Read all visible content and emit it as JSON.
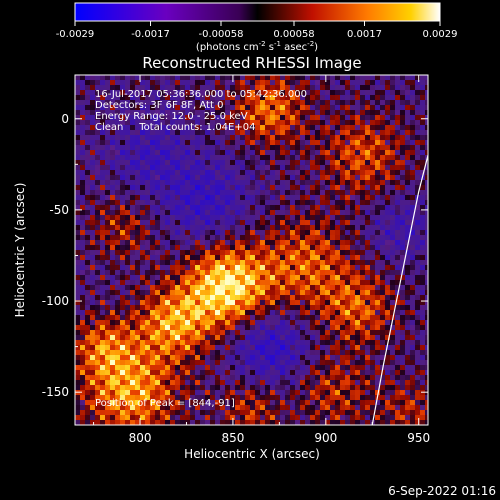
{
  "chart_data": {
    "type": "heatmap",
    "title": "Reconstructed RHESSI Image",
    "xlabel": "Heliocentric X (arcsec)",
    "ylabel": "Heliocentric Y (arcsec)",
    "xlim": [
      765,
      955
    ],
    "ylim": [
      -168,
      24
    ],
    "xticks": [
      800,
      850,
      900,
      950
    ],
    "yticks": [
      0,
      -50,
      -100,
      -150
    ],
    "colorbar": {
      "unit_prefix": "(photons cm",
      "unit_exp1": "-2",
      "unit_mid": " s",
      "unit_exp2": "-1",
      "unit_mid2": " asec",
      "unit_exp3": "-2",
      "unit_suffix": ")",
      "range": [
        -0.0029,
        0.0029
      ],
      "ticks": [
        "-0.0029",
        "-0.0017",
        "-0.00058",
        "0.00058",
        "0.0017",
        "0.0029"
      ]
    },
    "info_lines": [
      "16-Jul-2017 05:36:36.000 to 05:42:36.000",
      "Detectors: 3F 6F 8F, Att 0",
      "Energy Range: 12.0 - 25.0 keV",
      "Clean     Total counts: 1.04E+04"
    ],
    "peak_label": "Position of Peak = [844,-91]",
    "peak_position": [
      844,
      -91
    ],
    "limb_curve": [
      [
        966,
        24
      ],
      [
        950,
        -40
      ],
      [
        940,
        -90
      ],
      [
        931,
        -135
      ],
      [
        925,
        -168
      ]
    ],
    "blobs": [
      {
        "x": 847,
        "y": -92,
        "amp": 1.0,
        "s": 16
      },
      {
        "x": 818,
        "y": -112,
        "amp": 0.7,
        "s": 14
      },
      {
        "x": 795,
        "y": -150,
        "amp": 0.75,
        "s": 18
      },
      {
        "x": 780,
        "y": -125,
        "amp": 0.5,
        "s": 12
      },
      {
        "x": 890,
        "y": -80,
        "amp": 0.55,
        "s": 18
      },
      {
        "x": 918,
        "y": -105,
        "amp": 0.5,
        "s": 14
      },
      {
        "x": 905,
        "y": -150,
        "amp": 0.4,
        "s": 14
      },
      {
        "x": 870,
        "y": 5,
        "amp": 0.6,
        "s": 14
      },
      {
        "x": 920,
        "y": -20,
        "amp": 0.5,
        "s": 16
      },
      {
        "x": 945,
        "y": -160,
        "amp": 0.35,
        "s": 12
      },
      {
        "x": 860,
        "y": -160,
        "amp": 0.4,
        "s": 12
      },
      {
        "x": 790,
        "y": -60,
        "amp": 0.35,
        "s": 12
      },
      {
        "x": 870,
        "y": -125,
        "amp": -0.55,
        "s": 14
      },
      {
        "x": 835,
        "y": -45,
        "amp": -0.45,
        "s": 16
      },
      {
        "x": 805,
        "y": -20,
        "amp": -0.35,
        "s": 14
      },
      {
        "x": 940,
        "y": -60,
        "amp": -0.3,
        "s": 12
      }
    ]
  },
  "footer_timestamp": "6-Sep-2022 01:16"
}
